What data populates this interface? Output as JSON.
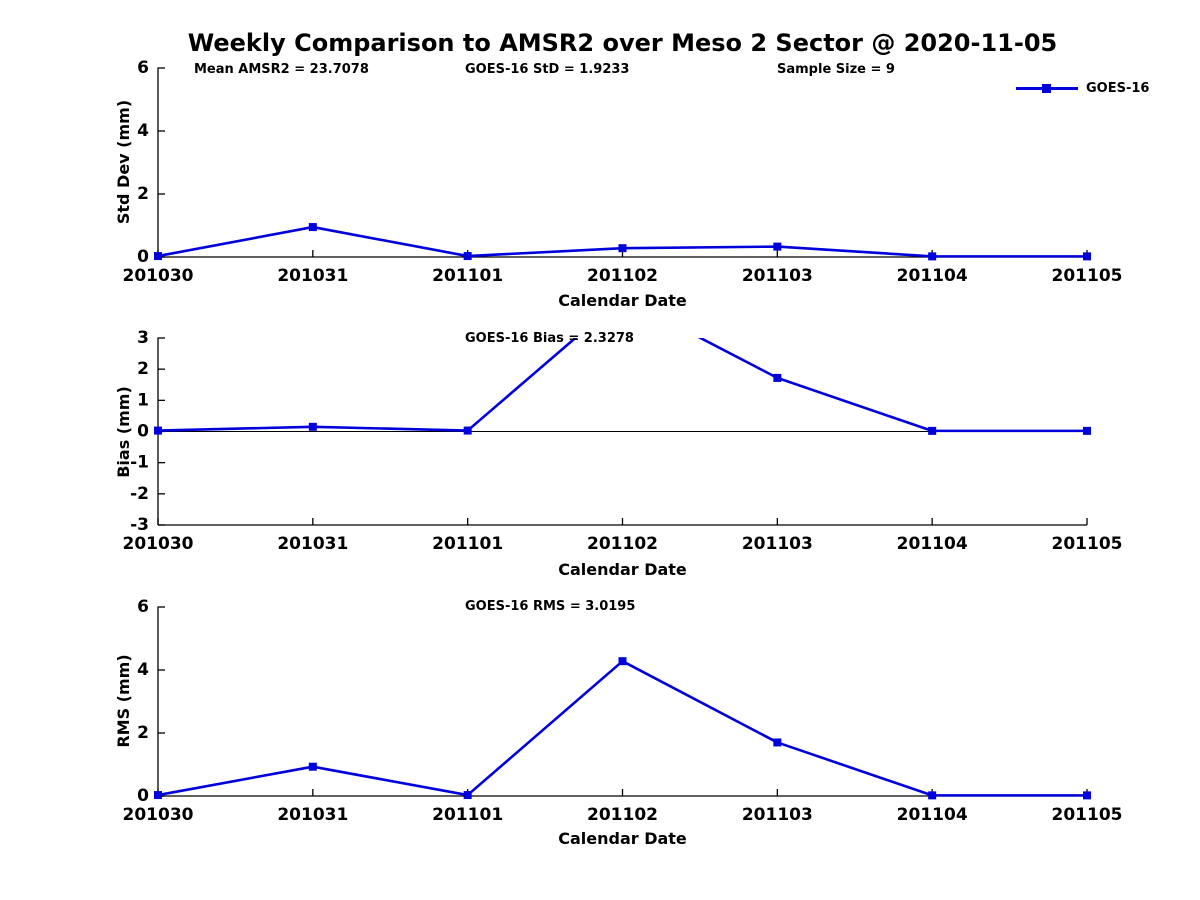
{
  "title": "Weekly Comparison to AMSR2 over Meso 2 Sector @ 2020-11-05",
  "xlabel": "Calendar Date",
  "legend": {
    "label": "GOES-16"
  },
  "colors": {
    "line": "#0000DD",
    "axis": "#000000",
    "text": "#000000"
  },
  "stats": {
    "mean_amsr2": "Mean AMSR2 = 23.7078",
    "goes16_std": "GOES-16 StD = 1.9233",
    "sample_size": "Sample Size = 9",
    "goes16_bias": "GOES-16 Bias  = 2.3278",
    "goes16_rms": "GOES-16 RMS = 3.0195"
  },
  "chart_data": [
    {
      "type": "line",
      "name": "std-dev",
      "series_name": "GOES-16",
      "ylabel": "Std Dev (mm)",
      "xlabel": "Calendar Date",
      "categories": [
        "201030",
        "201031",
        "201101",
        "201102",
        "201103",
        "201104",
        "201105"
      ],
      "values": [
        0.03,
        0.95,
        0.03,
        0.28,
        0.33,
        0.02,
        0.02
      ],
      "ylim": [
        0,
        6
      ],
      "yticks": [
        0,
        2,
        4,
        6
      ],
      "zero_line": false,
      "legend_position": "top-right",
      "grid": false
    },
    {
      "type": "line",
      "name": "bias",
      "series_name": "GOES-16",
      "ylabel": "Bias (mm)",
      "xlabel": "Calendar Date",
      "categories": [
        "201030",
        "201031",
        "201101",
        "201102",
        "201103",
        "201104",
        "201105"
      ],
      "values": [
        0.03,
        0.15,
        0.03,
        4.3,
        1.72,
        0.02,
        0.02
      ],
      "ylim": [
        -3,
        3
      ],
      "yticks": [
        -3,
        -2,
        -1,
        0,
        1,
        2,
        3
      ],
      "zero_line": true,
      "note": "peak at 201102 exceeds ylim and is clipped at top",
      "grid": false
    },
    {
      "type": "line",
      "name": "rms",
      "series_name": "GOES-16",
      "ylabel": "RMS (mm)",
      "xlabel": "Calendar Date",
      "categories": [
        "201030",
        "201031",
        "201101",
        "201102",
        "201103",
        "201104",
        "201105"
      ],
      "values": [
        0.03,
        0.93,
        0.03,
        4.28,
        1.7,
        0.02,
        0.02
      ],
      "ylim": [
        0,
        6
      ],
      "yticks": [
        0,
        2,
        4,
        6
      ],
      "zero_line": false,
      "grid": false
    }
  ]
}
